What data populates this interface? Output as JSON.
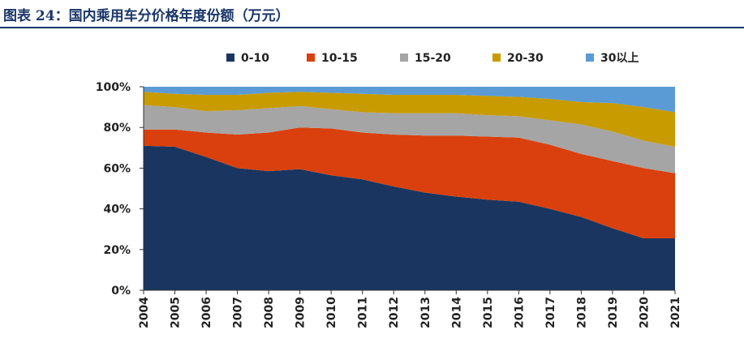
{
  "title": "图表 24：国内乘用车分价格年度份额（万元）",
  "chart_data": {
    "type": "area",
    "stacked": true,
    "categories": [
      "2004",
      "2005",
      "2006",
      "2007",
      "2008",
      "2009",
      "2010",
      "2011",
      "2012",
      "2013",
      "2014",
      "2015",
      "2016",
      "2017",
      "2018",
      "2019",
      "2020",
      "2021"
    ],
    "series": [
      {
        "name": "0-10",
        "color": "#1a3660",
        "values": [
          71,
          70.5,
          65.5,
          60,
          58.5,
          59.5,
          56.5,
          54.5,
          51,
          48,
          46,
          44.5,
          43.5,
          40,
          36,
          30.5,
          25.5,
          25.5
        ]
      },
      {
        "name": "10-15",
        "color": "#d9400d",
        "values": [
          8,
          8.5,
          12,
          16.5,
          19,
          20.5,
          23,
          23,
          25.5,
          28,
          30,
          31,
          31.5,
          31.5,
          31,
          33,
          34.5,
          32
        ]
      },
      {
        "name": "15-20",
        "color": "#a5a5a5",
        "values": [
          12,
          11,
          10.5,
          12,
          12,
          10.5,
          9.5,
          10,
          10.5,
          11,
          11,
          10.5,
          10.5,
          12,
          14.5,
          14.5,
          13.5,
          13
        ]
      },
      {
        "name": "20-30",
        "color": "#c89b00",
        "values": [
          6.5,
          6.5,
          8,
          7.5,
          7.5,
          7,
          8,
          9,
          9,
          9,
          9,
          9.5,
          9.5,
          10.5,
          11,
          14,
          16.5,
          17
        ]
      },
      {
        "name": "30以上",
        "color": "#5b9bd5",
        "values": [
          2.5,
          3.5,
          4,
          4,
          3,
          2.5,
          3,
          3.5,
          4,
          4,
          4,
          4.5,
          5,
          6,
          7.5,
          8,
          10,
          12.5
        ]
      }
    ],
    "ylim": [
      0,
      100
    ],
    "yticks": [
      0,
      20,
      40,
      60,
      80,
      100
    ],
    "ytick_labels": [
      "0%",
      "20%",
      "40%",
      "60%",
      "80%",
      "100%"
    ],
    "legend_position": "top",
    "grid": false
  }
}
